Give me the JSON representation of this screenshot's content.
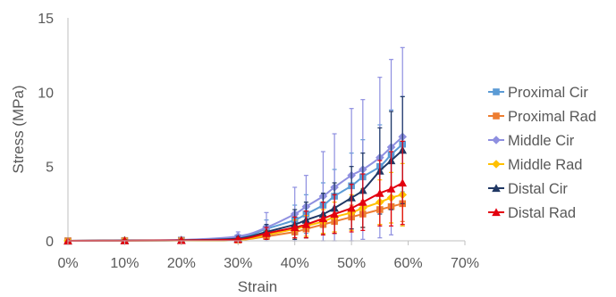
{
  "chart_data": {
    "type": "scatter",
    "title": "",
    "xlabel": "Strain",
    "ylabel": "Stress (MPa)",
    "xlim": [
      0,
      0.7
    ],
    "ylim": [
      0,
      15
    ],
    "x_ticks": [
      0,
      0.1,
      0.2,
      0.3,
      0.4,
      0.5,
      0.6,
      0.7
    ],
    "x_tick_labels": [
      "0%",
      "10%",
      "20%",
      "30%",
      "40%",
      "50%",
      "60%",
      "70%"
    ],
    "y_ticks": [
      0,
      5,
      10,
      15
    ],
    "y_tick_labels": [
      "0",
      "5",
      "10",
      "15"
    ],
    "grid": false,
    "legend_position": "right",
    "series": [
      {
        "name": "Proximal Cir",
        "color": "#5B9BD5",
        "marker": "square",
        "points": [
          {
            "x": 0.0,
            "y": 0.0,
            "err": 0.0
          },
          {
            "x": 0.1,
            "y": 0.02,
            "err": 0.05
          },
          {
            "x": 0.2,
            "y": 0.05,
            "err": 0.05
          },
          {
            "x": 0.3,
            "y": 0.2,
            "err": 0.2
          },
          {
            "x": 0.35,
            "y": 0.8,
            "err": 0.6
          },
          {
            "x": 0.4,
            "y": 1.4,
            "err": 1.0
          },
          {
            "x": 0.42,
            "y": 1.8,
            "err": 1.3
          },
          {
            "x": 0.45,
            "y": 2.4,
            "err": 1.5
          },
          {
            "x": 0.47,
            "y": 3.0,
            "err": 1.8
          },
          {
            "x": 0.5,
            "y": 3.7,
            "err": 2.2
          },
          {
            "x": 0.52,
            "y": 4.3,
            "err": 2.5
          },
          {
            "x": 0.55,
            "y": 5.0,
            "err": 2.8
          },
          {
            "x": 0.57,
            "y": 5.8,
            "err": 3.0
          },
          {
            "x": 0.59,
            "y": 6.5,
            "err": 3.2
          }
        ]
      },
      {
        "name": "Proximal Rad",
        "color": "#ED7D31",
        "marker": "square",
        "points": [
          {
            "x": 0.0,
            "y": 0.0,
            "err": 0.0
          },
          {
            "x": 0.1,
            "y": 0.01,
            "err": 0.02
          },
          {
            "x": 0.2,
            "y": 0.02,
            "err": 0.03
          },
          {
            "x": 0.3,
            "y": 0.05,
            "err": 0.05
          },
          {
            "x": 0.35,
            "y": 0.3,
            "err": 0.2
          },
          {
            "x": 0.4,
            "y": 0.6,
            "err": 0.4
          },
          {
            "x": 0.42,
            "y": 0.8,
            "err": 0.5
          },
          {
            "x": 0.45,
            "y": 1.1,
            "err": 0.6
          },
          {
            "x": 0.47,
            "y": 1.3,
            "err": 0.7
          },
          {
            "x": 0.5,
            "y": 1.6,
            "err": 0.8
          },
          {
            "x": 0.52,
            "y": 1.8,
            "err": 0.9
          },
          {
            "x": 0.55,
            "y": 2.1,
            "err": 1.0
          },
          {
            "x": 0.57,
            "y": 2.3,
            "err": 1.1
          },
          {
            "x": 0.59,
            "y": 2.5,
            "err": 1.2
          }
        ]
      },
      {
        "name": "Middle Cir",
        "color": "#8E8FE0",
        "marker": "diamond",
        "points": [
          {
            "x": 0.0,
            "y": 0.0,
            "err": 0.0
          },
          {
            "x": 0.1,
            "y": 0.03,
            "err": 0.05
          },
          {
            "x": 0.2,
            "y": 0.06,
            "err": 0.05
          },
          {
            "x": 0.3,
            "y": 0.3,
            "err": 0.3
          },
          {
            "x": 0.35,
            "y": 0.9,
            "err": 1.0
          },
          {
            "x": 0.4,
            "y": 1.8,
            "err": 1.8
          },
          {
            "x": 0.42,
            "y": 2.3,
            "err": 2.1
          },
          {
            "x": 0.45,
            "y": 3.0,
            "err": 3.0
          },
          {
            "x": 0.47,
            "y": 3.6,
            "err": 3.6
          },
          {
            "x": 0.5,
            "y": 4.4,
            "err": 4.5
          },
          {
            "x": 0.52,
            "y": 4.8,
            "err": 4.7
          },
          {
            "x": 0.55,
            "y": 5.6,
            "err": 5.4
          },
          {
            "x": 0.57,
            "y": 6.3,
            "err": 5.9
          },
          {
            "x": 0.59,
            "y": 7.0,
            "err": 6.0
          }
        ]
      },
      {
        "name": "Middle Rad",
        "color": "#FFC000",
        "marker": "diamond",
        "points": [
          {
            "x": 0.0,
            "y": 0.0,
            "err": 0.0
          },
          {
            "x": 0.1,
            "y": 0.01,
            "err": 0.02
          },
          {
            "x": 0.2,
            "y": 0.02,
            "err": 0.03
          },
          {
            "x": 0.3,
            "y": 0.05,
            "err": 0.05
          },
          {
            "x": 0.35,
            "y": 0.4,
            "err": 0.3
          },
          {
            "x": 0.4,
            "y": 0.8,
            "err": 0.6
          },
          {
            "x": 0.42,
            "y": 1.0,
            "err": 0.7
          },
          {
            "x": 0.45,
            "y": 1.3,
            "err": 0.8
          },
          {
            "x": 0.47,
            "y": 1.6,
            "err": 1.0
          },
          {
            "x": 0.5,
            "y": 1.9,
            "err": 1.2
          },
          {
            "x": 0.52,
            "y": 2.2,
            "err": 1.3
          },
          {
            "x": 0.55,
            "y": 2.6,
            "err": 1.5
          },
          {
            "x": 0.57,
            "y": 2.9,
            "err": 1.7
          },
          {
            "x": 0.59,
            "y": 3.1,
            "err": 2.1
          }
        ]
      },
      {
        "name": "Distal Cir",
        "color": "#203864",
        "marker": "triangle",
        "points": [
          {
            "x": 0.0,
            "y": 0.0,
            "err": 0.0
          },
          {
            "x": 0.1,
            "y": 0.02,
            "err": 0.05
          },
          {
            "x": 0.2,
            "y": 0.04,
            "err": 0.05
          },
          {
            "x": 0.3,
            "y": 0.15,
            "err": 0.15
          },
          {
            "x": 0.35,
            "y": 0.6,
            "err": 0.5
          },
          {
            "x": 0.4,
            "y": 1.1,
            "err": 1.0
          },
          {
            "x": 0.42,
            "y": 1.4,
            "err": 1.2
          },
          {
            "x": 0.45,
            "y": 1.8,
            "err": 1.4
          },
          {
            "x": 0.47,
            "y": 2.2,
            "err": 1.7
          },
          {
            "x": 0.5,
            "y": 2.9,
            "err": 2.1
          },
          {
            "x": 0.52,
            "y": 3.4,
            "err": 2.5
          },
          {
            "x": 0.55,
            "y": 4.7,
            "err": 2.9
          },
          {
            "x": 0.57,
            "y": 5.4,
            "err": 3.3
          },
          {
            "x": 0.59,
            "y": 6.1,
            "err": 3.6
          }
        ]
      },
      {
        "name": "Distal Rad",
        "color": "#E3000F",
        "marker": "triangle",
        "points": [
          {
            "x": 0.0,
            "y": 0.0,
            "err": 0.0
          },
          {
            "x": 0.1,
            "y": 0.01,
            "err": 0.02
          },
          {
            "x": 0.2,
            "y": 0.03,
            "err": 0.03
          },
          {
            "x": 0.3,
            "y": 0.1,
            "err": 0.1
          },
          {
            "x": 0.35,
            "y": 0.5,
            "err": 0.4
          },
          {
            "x": 0.4,
            "y": 0.9,
            "err": 0.7
          },
          {
            "x": 0.42,
            "y": 1.1,
            "err": 0.9
          },
          {
            "x": 0.45,
            "y": 1.5,
            "err": 1.1
          },
          {
            "x": 0.47,
            "y": 1.8,
            "err": 1.3
          },
          {
            "x": 0.5,
            "y": 2.2,
            "err": 1.6
          },
          {
            "x": 0.52,
            "y": 2.6,
            "err": 1.9
          },
          {
            "x": 0.55,
            "y": 3.2,
            "err": 2.2
          },
          {
            "x": 0.57,
            "y": 3.5,
            "err": 2.5
          },
          {
            "x": 0.59,
            "y": 3.9,
            "err": 2.8
          }
        ]
      }
    ]
  }
}
